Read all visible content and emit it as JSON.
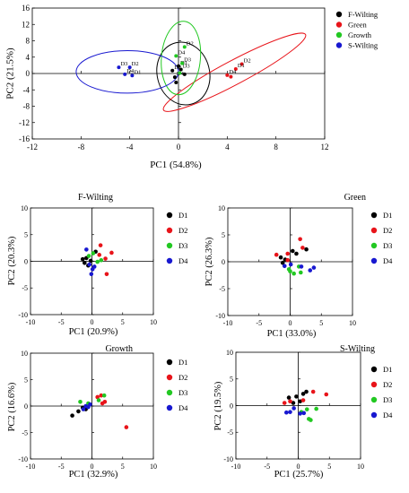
{
  "chart_data": [
    {
      "type": "scatter",
      "title": "",
      "xlabel": "PC1 (54.8%)",
      "ylabel": "PC2 (21.5%)",
      "xlim": [
        -12,
        12
      ],
      "ylim": [
        -16,
        16
      ],
      "xticks": [
        -12,
        -8,
        -4,
        0,
        4,
        8,
        12
      ],
      "yticks": [
        -16,
        -12,
        -8,
        -4,
        0,
        4,
        8,
        12,
        16
      ],
      "grid": false,
      "legend_position": "top-right",
      "series": [
        {
          "name": "F-Wilting",
          "color": "#000000",
          "points": [
            {
              "x": 0.0,
              "y": 1.8,
              "label": "D1"
            },
            {
              "x": 0.2,
              "y": 1.0,
              "label": "D3"
            },
            {
              "x": -0.5,
              "y": 0.7,
              "label": "D2"
            },
            {
              "x": -0.3,
              "y": -0.9,
              "label": "D4"
            },
            {
              "x": 0.5,
              "y": -0.2
            },
            {
              "x": -0.2,
              "y": -2.2
            }
          ]
        },
        {
          "name": "Green",
          "color": "#e8141a",
          "points": [
            {
              "x": 5.2,
              "y": 2.3,
              "label": "D2"
            },
            {
              "x": 4.7,
              "y": 1.1,
              "label": "D1"
            },
            {
              "x": 4.0,
              "y": -0.4,
              "label": "D4"
            },
            {
              "x": 4.3,
              "y": -0.8
            }
          ]
        },
        {
          "name": "Growth",
          "color": "#22c822",
          "points": [
            {
              "x": 0.5,
              "y": 6.5,
              "label": "D2"
            },
            {
              "x": -0.2,
              "y": 4.3,
              "label": "D4"
            },
            {
              "x": 0.3,
              "y": 2.5,
              "label": "D3"
            },
            {
              "x": 0.1,
              "y": 0.1
            }
          ]
        },
        {
          "name": "S-Wilting",
          "color": "#1818d0",
          "points": [
            {
              "x": -4.9,
              "y": 1.5,
              "label": "D3"
            },
            {
              "x": -4.0,
              "y": 1.5,
              "label": "D2"
            },
            {
              "x": -4.4,
              "y": -0.2,
              "label": "D4"
            },
            {
              "x": -3.8,
              "y": -0.5,
              "label": "D1"
            }
          ]
        }
      ]
    },
    {
      "type": "scatter",
      "title": "F-Wilting",
      "xlabel": "PC1 (20.9%)",
      "ylabel": "PC2 (20.3%)",
      "xlim": [
        -10,
        10
      ],
      "ylim": [
        -10,
        10
      ],
      "xticks": [
        -10,
        -5,
        0,
        5,
        10
      ],
      "yticks": [
        -10,
        -5,
        0,
        5,
        10
      ],
      "legend_position": "right",
      "series": [
        {
          "name": "D1",
          "color": "#000000",
          "points": [
            [
              -1.5,
              0.4
            ],
            [
              -1.2,
              -0.3
            ],
            [
              -0.6,
              -0.8
            ],
            [
              -0.2,
              0.1
            ],
            [
              0.6,
              1.8
            ],
            [
              -0.9,
              0.6
            ]
          ]
        },
        {
          "name": "D2",
          "color": "#e8141a",
          "points": [
            [
              1.4,
              3.0
            ],
            [
              2.2,
              0.5
            ],
            [
              3.2,
              1.6
            ],
            [
              2.4,
              -2.4
            ],
            [
              1.2,
              1.2
            ]
          ]
        },
        {
          "name": "D3",
          "color": "#22c822",
          "points": [
            [
              0.2,
              1.5
            ],
            [
              1.5,
              0.2
            ],
            [
              0.9,
              -0.1
            ],
            [
              -0.5,
              1.0
            ]
          ]
        },
        {
          "name": "D4",
          "color": "#1818d0",
          "points": [
            [
              -0.9,
              2.2
            ],
            [
              -0.4,
              -0.6
            ],
            [
              0.1,
              -1.5
            ],
            [
              -0.1,
              -2.4
            ],
            [
              0.4,
              -1.0
            ]
          ]
        }
      ]
    },
    {
      "type": "scatter",
      "title": "Green",
      "xlabel": "PC1 (33.0%)",
      "ylabel": "PC2 (26.3%)",
      "xlim": [
        -10,
        10
      ],
      "ylim": [
        -10,
        10
      ],
      "xticks": [
        -10,
        -5,
        0,
        5,
        10
      ],
      "yticks": [
        -10,
        -5,
        0,
        5,
        10
      ],
      "legend_position": "right",
      "series": [
        {
          "name": "D1",
          "color": "#000000",
          "points": [
            [
              -1.5,
              0.8
            ],
            [
              -0.8,
              0.4
            ],
            [
              0.4,
              2.0
            ],
            [
              1.0,
              1.5
            ],
            [
              2.6,
              2.3
            ],
            [
              -1.2,
              -0.2
            ]
          ]
        },
        {
          "name": "D2",
          "color": "#e8141a",
          "points": [
            [
              -2.2,
              1.3
            ],
            [
              -0.4,
              1.5
            ],
            [
              1.6,
              4.2
            ],
            [
              2.0,
              2.6
            ],
            [
              -0.4,
              0.3
            ]
          ]
        },
        {
          "name": "D3",
          "color": "#22c822",
          "points": [
            [
              0.0,
              -1.8
            ],
            [
              0.6,
              -2.2
            ],
            [
              1.4,
              -0.9
            ],
            [
              1.7,
              -2.0
            ],
            [
              -0.2,
              -1.4
            ]
          ]
        },
        {
          "name": "D4",
          "color": "#1818d0",
          "points": [
            [
              -0.9,
              -0.8
            ],
            [
              0.1,
              -0.5
            ],
            [
              1.8,
              -0.9
            ],
            [
              3.2,
              -1.6
            ],
            [
              3.8,
              -1.1
            ]
          ]
        }
      ]
    },
    {
      "type": "scatter",
      "title": "Growth",
      "xlabel": "PC1 (32.9%)",
      "ylabel": "PC2 (16.6%)",
      "xlim": [
        -10,
        10
      ],
      "ylim": [
        -10,
        10
      ],
      "xticks": [
        -10,
        -5,
        0,
        5,
        10
      ],
      "yticks": [
        -10,
        -5,
        0,
        5,
        10
      ],
      "legend_position": "right",
      "series": [
        {
          "name": "D1",
          "color": "#000000",
          "points": [
            [
              -3.2,
              -1.8
            ],
            [
              -2.2,
              -1.0
            ],
            [
              -1.5,
              -0.3
            ],
            [
              -0.7,
              0.0
            ],
            [
              -1.0,
              -0.6
            ]
          ]
        },
        {
          "name": "D2",
          "color": "#e8141a",
          "points": [
            [
              0.9,
              1.7
            ],
            [
              1.5,
              2.0
            ],
            [
              1.7,
              0.5
            ],
            [
              2.1,
              0.8
            ],
            [
              5.6,
              -4.0
            ]
          ]
        },
        {
          "name": "D3",
          "color": "#22c822",
          "points": [
            [
              -1.9,
              0.8
            ],
            [
              -0.6,
              0.5
            ],
            [
              2.0,
              2.0
            ],
            [
              1.1,
              1.1
            ]
          ]
        },
        {
          "name": "D4",
          "color": "#1818d0",
          "points": [
            [
              -1.4,
              -0.6
            ],
            [
              -1.0,
              0.0
            ],
            [
              -0.6,
              -0.2
            ],
            [
              -0.3,
              0.3
            ]
          ]
        }
      ]
    },
    {
      "type": "scatter",
      "title": "S-Wilting",
      "xlabel": "PC1 (25.7%)",
      "ylabel": "PC2 (19.5%)",
      "xlim": [
        -10,
        10
      ],
      "ylim": [
        -10,
        10
      ],
      "xticks": [
        -10,
        -5,
        0,
        5,
        10
      ],
      "yticks": [
        -10,
        -5,
        0,
        5,
        10
      ],
      "legend_position": "right",
      "series": [
        {
          "name": "D1",
          "color": "#000000",
          "points": [
            [
              -1.5,
              1.5
            ],
            [
              -0.3,
              1.7
            ],
            [
              0.8,
              2.2
            ],
            [
              1.3,
              2.6
            ],
            [
              0.3,
              0.8
            ],
            [
              -0.8,
              0.5
            ]
          ]
        },
        {
          "name": "D2",
          "color": "#e8141a",
          "points": [
            [
              -2.2,
              0.5
            ],
            [
              -1.3,
              0.8
            ],
            [
              0.8,
              1.0
            ],
            [
              2.4,
              2.6
            ],
            [
              4.5,
              2.1
            ]
          ]
        },
        {
          "name": "D3",
          "color": "#22c822",
          "points": [
            [
              1.4,
              -0.7
            ],
            [
              2.0,
              -2.7
            ],
            [
              1.7,
              -2.5
            ],
            [
              2.9,
              -0.6
            ],
            [
              0.5,
              -1.2
            ]
          ]
        },
        {
          "name": "D4",
          "color": "#1818d0",
          "points": [
            [
              -1.9,
              -1.3
            ],
            [
              -1.3,
              -1.2
            ],
            [
              -0.7,
              -0.5
            ],
            [
              0.3,
              -1.5
            ],
            [
              0.9,
              -1.4
            ]
          ]
        }
      ]
    }
  ]
}
